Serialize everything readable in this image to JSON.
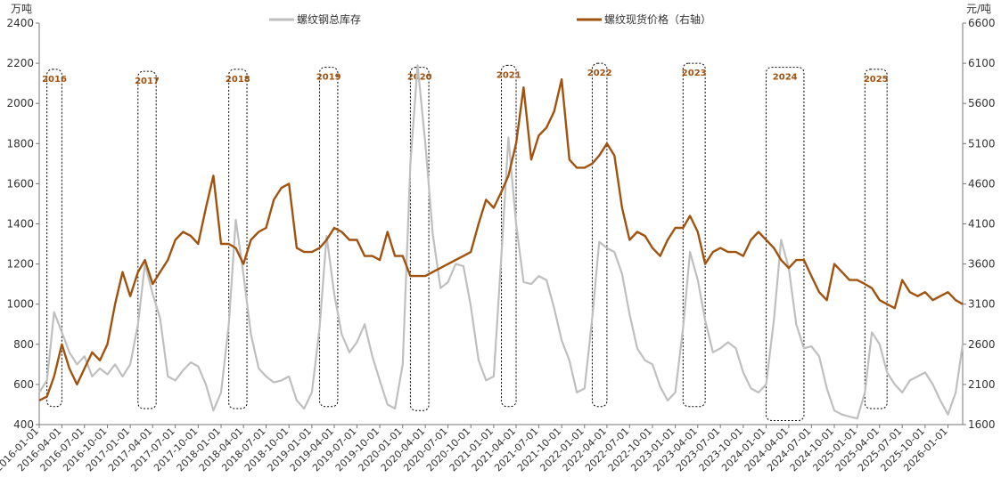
{
  "chart_data": {
    "type": "line",
    "left_axis_unit": "万吨",
    "right_axis_unit": "元/吨",
    "ylim_left": [
      400,
      2400
    ],
    "ylim_right": [
      1600,
      6600
    ],
    "yticks_left": [
      "400",
      "600",
      "800",
      "1000",
      "1200",
      "1400",
      "1600",
      "1800",
      "2000",
      "2200",
      "2400"
    ],
    "yticks_right": [
      "1600",
      "2100",
      "2600",
      "3100",
      "3600",
      "4100",
      "4600",
      "5100",
      "5600",
      "6100",
      "6600"
    ],
    "xticks": [
      "2016-01-01",
      "2016-04-01",
      "2016-07-01",
      "2016-10-01",
      "2017-01-01",
      "2017-04-01",
      "2017-07-01",
      "2017-10-01",
      "2018-01-01",
      "2018-04-01",
      "2018-07-01",
      "2018-10-01",
      "2019-01-01",
      "2019-04-01",
      "2019-07-01",
      "2019-10-01",
      "2020-01-01",
      "2020-04-01",
      "2020-07-01",
      "2020-10-01",
      "2021-01-01",
      "2021-04-01",
      "2021-07-01",
      "2021-10-01",
      "2022-01-01",
      "2022-04-01",
      "2022-07-01",
      "2022-10-01",
      "2023-01-01",
      "2023-04-01",
      "2023-07-01",
      "2023-10-01",
      "2024-01-01",
      "2024-04-01",
      "2024-07-01",
      "2024-10-01",
      "2025-01-01",
      "2025-04-01",
      "2025-07-01",
      "2025-10-01",
      "2026-01-01"
    ],
    "grid": false,
    "legend_position": "top-center",
    "series": [
      {
        "name": "螺纹钢总库存",
        "axis": "left",
        "color": "#BFBFBF",
        "points": [
          [
            "2016-01-01",
            560
          ],
          [
            "2016-02-01",
            620
          ],
          [
            "2016-03-01",
            960
          ],
          [
            "2016-04-01",
            860
          ],
          [
            "2016-05-01",
            760
          ],
          [
            "2016-06-01",
            700
          ],
          [
            "2016-07-01",
            740
          ],
          [
            "2016-08-01",
            640
          ],
          [
            "2016-09-01",
            680
          ],
          [
            "2016-10-01",
            650
          ],
          [
            "2016-11-01",
            700
          ],
          [
            "2016-12-01",
            640
          ],
          [
            "2017-01-01",
            700
          ],
          [
            "2017-02-01",
            900
          ],
          [
            "2017-03-01",
            1200
          ],
          [
            "2017-04-01",
            1050
          ],
          [
            "2017-05-01",
            930
          ],
          [
            "2017-06-01",
            640
          ],
          [
            "2017-07-01",
            620
          ],
          [
            "2017-08-01",
            670
          ],
          [
            "2017-09-01",
            710
          ],
          [
            "2017-10-01",
            690
          ],
          [
            "2017-11-01",
            600
          ],
          [
            "2017-12-01",
            470
          ],
          [
            "2018-01-01",
            560
          ],
          [
            "2018-02-01",
            900
          ],
          [
            "2018-03-01",
            1420
          ],
          [
            "2018-04-01",
            1150
          ],
          [
            "2018-05-01",
            850
          ],
          [
            "2018-06-01",
            680
          ],
          [
            "2018-07-01",
            640
          ],
          [
            "2018-08-01",
            610
          ],
          [
            "2018-09-01",
            620
          ],
          [
            "2018-10-01",
            640
          ],
          [
            "2018-11-01",
            520
          ],
          [
            "2018-12-01",
            480
          ],
          [
            "2019-01-01",
            560
          ],
          [
            "2019-02-01",
            880
          ],
          [
            "2019-03-01",
            1340
          ],
          [
            "2019-04-01",
            1050
          ],
          [
            "2019-05-01",
            850
          ],
          [
            "2019-06-01",
            760
          ],
          [
            "2019-07-01",
            810
          ],
          [
            "2019-08-01",
            900
          ],
          [
            "2019-09-01",
            740
          ],
          [
            "2019-10-01",
            620
          ],
          [
            "2019-11-01",
            500
          ],
          [
            "2019-12-01",
            480
          ],
          [
            "2020-01-01",
            700
          ],
          [
            "2020-02-01",
            1700
          ],
          [
            "2020-03-01",
            2190
          ],
          [
            "2020-04-01",
            1800
          ],
          [
            "2020-05-01",
            1350
          ],
          [
            "2020-06-01",
            1080
          ],
          [
            "2020-07-01",
            1110
          ],
          [
            "2020-08-01",
            1200
          ],
          [
            "2020-09-01",
            1190
          ],
          [
            "2020-10-01",
            990
          ],
          [
            "2020-11-01",
            720
          ],
          [
            "2020-12-01",
            620
          ],
          [
            "2021-01-01",
            640
          ],
          [
            "2021-02-01",
            1250
          ],
          [
            "2021-03-01",
            1830
          ],
          [
            "2021-04-01",
            1400
          ],
          [
            "2021-05-01",
            1110
          ],
          [
            "2021-06-01",
            1100
          ],
          [
            "2021-07-01",
            1140
          ],
          [
            "2021-08-01",
            1120
          ],
          [
            "2021-09-01",
            980
          ],
          [
            "2021-10-01",
            820
          ],
          [
            "2021-11-01",
            720
          ],
          [
            "2021-12-01",
            560
          ],
          [
            "2022-01-01",
            580
          ],
          [
            "2022-02-01",
            930
          ],
          [
            "2022-03-01",
            1310
          ],
          [
            "2022-04-01",
            1280
          ],
          [
            "2022-05-01",
            1260
          ],
          [
            "2022-06-01",
            1150
          ],
          [
            "2022-07-01",
            950
          ],
          [
            "2022-08-01",
            780
          ],
          [
            "2022-09-01",
            720
          ],
          [
            "2022-10-01",
            700
          ],
          [
            "2022-11-01",
            590
          ],
          [
            "2022-12-01",
            520
          ],
          [
            "2023-01-01",
            560
          ],
          [
            "2023-02-01",
            880
          ],
          [
            "2023-03-01",
            1260
          ],
          [
            "2023-04-01",
            1120
          ],
          [
            "2023-05-01",
            920
          ],
          [
            "2023-06-01",
            760
          ],
          [
            "2023-07-01",
            780
          ],
          [
            "2023-08-01",
            810
          ],
          [
            "2023-09-01",
            780
          ],
          [
            "2023-10-01",
            660
          ],
          [
            "2023-11-01",
            580
          ],
          [
            "2023-12-01",
            560
          ],
          [
            "2024-01-01",
            600
          ],
          [
            "2024-02-01",
            920
          ],
          [
            "2024-03-01",
            1320
          ],
          [
            "2024-04-01",
            1180
          ],
          [
            "2024-05-01",
            900
          ],
          [
            "2024-06-01",
            780
          ],
          [
            "2024-07-01",
            790
          ],
          [
            "2024-08-01",
            740
          ],
          [
            "2024-09-01",
            580
          ],
          [
            "2024-10-01",
            470
          ],
          [
            "2024-11-01",
            450
          ],
          [
            "2024-12-01",
            440
          ],
          [
            "2025-01-01",
            430
          ],
          [
            "2025-02-01",
            560
          ],
          [
            "2025-03-01",
            860
          ],
          [
            "2025-04-01",
            800
          ],
          [
            "2025-05-01",
            660
          ],
          [
            "2025-06-01",
            600
          ],
          [
            "2025-07-01",
            560
          ],
          [
            "2025-08-01",
            620
          ],
          [
            "2025-09-01",
            640
          ],
          [
            "2025-10-01",
            660
          ],
          [
            "2025-11-01",
            600
          ],
          [
            "2025-12-01",
            520
          ],
          [
            "2026-01-01",
            450
          ],
          [
            "2026-02-01",
            560
          ],
          [
            "2026-03-01",
            800
          ]
        ]
      },
      {
        "name": "螺纹现货价格（右轴）",
        "axis": "right",
        "color": "#A0520F",
        "points": [
          [
            "2016-01-01",
            1900
          ],
          [
            "2016-02-01",
            1950
          ],
          [
            "2016-03-01",
            2200
          ],
          [
            "2016-04-01",
            2600
          ],
          [
            "2016-05-01",
            2300
          ],
          [
            "2016-06-01",
            2100
          ],
          [
            "2016-07-01",
            2300
          ],
          [
            "2016-08-01",
            2500
          ],
          [
            "2016-09-01",
            2400
          ],
          [
            "2016-10-01",
            2600
          ],
          [
            "2016-11-01",
            3100
          ],
          [
            "2016-12-01",
            3500
          ],
          [
            "2017-01-01",
            3200
          ],
          [
            "2017-02-01",
            3500
          ],
          [
            "2017-03-01",
            3650
          ],
          [
            "2017-04-01",
            3350
          ],
          [
            "2017-05-01",
            3500
          ],
          [
            "2017-06-01",
            3650
          ],
          [
            "2017-07-01",
            3900
          ],
          [
            "2017-08-01",
            4000
          ],
          [
            "2017-09-01",
            3950
          ],
          [
            "2017-10-01",
            3850
          ],
          [
            "2017-11-01",
            4300
          ],
          [
            "2017-12-01",
            4700
          ],
          [
            "2018-01-01",
            3850
          ],
          [
            "2018-02-01",
            3850
          ],
          [
            "2018-03-01",
            3800
          ],
          [
            "2018-04-01",
            3600
          ],
          [
            "2018-05-01",
            3900
          ],
          [
            "2018-06-01",
            4000
          ],
          [
            "2018-07-01",
            4050
          ],
          [
            "2018-08-01",
            4400
          ],
          [
            "2018-09-01",
            4550
          ],
          [
            "2018-10-01",
            4600
          ],
          [
            "2018-11-01",
            3800
          ],
          [
            "2018-12-01",
            3750
          ],
          [
            "2019-01-01",
            3750
          ],
          [
            "2019-02-01",
            3800
          ],
          [
            "2019-03-01",
            3900
          ],
          [
            "2019-04-01",
            4050
          ],
          [
            "2019-05-01",
            4000
          ],
          [
            "2019-06-01",
            3900
          ],
          [
            "2019-07-01",
            3900
          ],
          [
            "2019-08-01",
            3700
          ],
          [
            "2019-09-01",
            3700
          ],
          [
            "2019-10-01",
            3650
          ],
          [
            "2019-11-01",
            4000
          ],
          [
            "2019-12-01",
            3700
          ],
          [
            "2020-01-01",
            3700
          ],
          [
            "2020-02-01",
            3450
          ],
          [
            "2020-03-01",
            3450
          ],
          [
            "2020-04-01",
            3450
          ],
          [
            "2020-05-01",
            3500
          ],
          [
            "2020-06-01",
            3550
          ],
          [
            "2020-07-01",
            3600
          ],
          [
            "2020-08-01",
            3650
          ],
          [
            "2020-09-01",
            3700
          ],
          [
            "2020-10-01",
            3750
          ],
          [
            "2020-11-01",
            4100
          ],
          [
            "2020-12-01",
            4400
          ],
          [
            "2021-01-01",
            4300
          ],
          [
            "2021-02-01",
            4500
          ],
          [
            "2021-03-01",
            4700
          ],
          [
            "2021-04-01",
            5100
          ],
          [
            "2021-05-01",
            5800
          ],
          [
            "2021-06-01",
            4900
          ],
          [
            "2021-07-01",
            5200
          ],
          [
            "2021-08-01",
            5300
          ],
          [
            "2021-09-01",
            5500
          ],
          [
            "2021-10-01",
            5900
          ],
          [
            "2021-11-01",
            4900
          ],
          [
            "2021-12-01",
            4800
          ],
          [
            "2022-01-01",
            4800
          ],
          [
            "2022-02-01",
            4850
          ],
          [
            "2022-03-01",
            4950
          ],
          [
            "2022-04-01",
            5100
          ],
          [
            "2022-05-01",
            4950
          ],
          [
            "2022-06-01",
            4300
          ],
          [
            "2022-07-01",
            3900
          ],
          [
            "2022-08-01",
            4000
          ],
          [
            "2022-09-01",
            3950
          ],
          [
            "2022-10-01",
            3800
          ],
          [
            "2022-11-01",
            3700
          ],
          [
            "2022-12-01",
            3900
          ],
          [
            "2023-01-01",
            4050
          ],
          [
            "2023-02-01",
            4050
          ],
          [
            "2023-03-01",
            4200
          ],
          [
            "2023-04-01",
            4000
          ],
          [
            "2023-05-01",
            3600
          ],
          [
            "2023-06-01",
            3750
          ],
          [
            "2023-07-01",
            3800
          ],
          [
            "2023-08-01",
            3750
          ],
          [
            "2023-09-01",
            3750
          ],
          [
            "2023-10-01",
            3700
          ],
          [
            "2023-11-01",
            3900
          ],
          [
            "2023-12-01",
            4000
          ],
          [
            "2024-01-01",
            3900
          ],
          [
            "2024-02-01",
            3800
          ],
          [
            "2024-03-01",
            3650
          ],
          [
            "2024-04-01",
            3550
          ],
          [
            "2024-05-01",
            3650
          ],
          [
            "2024-06-01",
            3650
          ],
          [
            "2024-07-01",
            3450
          ],
          [
            "2024-08-01",
            3250
          ],
          [
            "2024-09-01",
            3150
          ],
          [
            "2024-10-01",
            3600
          ],
          [
            "2024-11-01",
            3500
          ],
          [
            "2024-12-01",
            3400
          ],
          [
            "2025-01-01",
            3400
          ],
          [
            "2025-02-01",
            3350
          ],
          [
            "2025-03-01",
            3300
          ],
          [
            "2025-04-01",
            3150
          ],
          [
            "2025-05-01",
            3100
          ],
          [
            "2025-06-01",
            3050
          ],
          [
            "2025-07-01",
            3400
          ],
          [
            "2025-08-01",
            3250
          ],
          [
            "2025-09-01",
            3200
          ],
          [
            "2025-10-01",
            3250
          ],
          [
            "2025-11-01",
            3150
          ],
          [
            "2025-12-01",
            3200
          ],
          [
            "2026-01-01",
            3250
          ],
          [
            "2026-02-01",
            3150
          ],
          [
            "2026-03-01",
            3100
          ]
        ]
      }
    ],
    "season_boxes": [
      {
        "label": "2016",
        "start": "2016-02-01",
        "end": "2016-04-01",
        "ymin": 490,
        "ymax": 2170
      },
      {
        "label": "2017",
        "start": "2017-02-01",
        "end": "2017-04-15",
        "ymin": 480,
        "ymax": 2160
      },
      {
        "label": "2018",
        "start": "2018-02-01",
        "end": "2018-04-15",
        "ymin": 480,
        "ymax": 2170
      },
      {
        "label": "2019",
        "start": "2019-02-01",
        "end": "2019-04-15",
        "ymin": 490,
        "ymax": 2180
      },
      {
        "label": "2020",
        "start": "2020-02-01",
        "end": "2020-04-15",
        "ymin": 470,
        "ymax": 2180
      },
      {
        "label": "2021",
        "start": "2021-02-01",
        "end": "2021-04-01",
        "ymin": 490,
        "ymax": 2190
      },
      {
        "label": "2022",
        "start": "2022-02-01",
        "end": "2022-04-01",
        "ymin": 490,
        "ymax": 2200
      },
      {
        "label": "2023",
        "start": "2023-02-01",
        "end": "2023-05-01",
        "ymin": 490,
        "ymax": 2200
      },
      {
        "label": "2024",
        "start": "2024-01-01",
        "end": "2024-06-01",
        "ymin": 420,
        "ymax": 2180
      },
      {
        "label": "2025",
        "start": "2025-02-01",
        "end": "2025-05-01",
        "ymin": 480,
        "ymax": 2170
      }
    ]
  }
}
